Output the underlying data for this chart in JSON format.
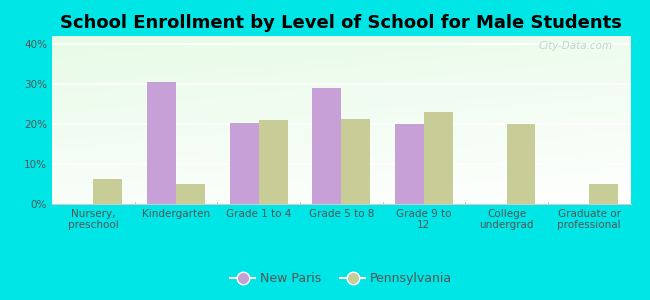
{
  "title": "School Enrollment by Level of School for Male Students",
  "categories": [
    "Nursery,\npreschool",
    "Kindergarten",
    "Grade 1 to 4",
    "Grade 5 to 8",
    "Grade 9 to\n12",
    "College\nundergrad",
    "Graduate or\nprofessional"
  ],
  "new_paris": [
    0,
    30.5,
    20.3,
    29.0,
    20.1,
    0,
    0
  ],
  "pennsylvania": [
    6.2,
    5.0,
    21.0,
    21.3,
    23.0,
    20.0,
    5.0
  ],
  "new_paris_color": "#c8a0d8",
  "pennsylvania_color": "#c8cc96",
  "background_color": "#00e5e5",
  "ylim": [
    0,
    42
  ],
  "yticks": [
    0,
    10,
    20,
    30,
    40
  ],
  "ytick_labels": [
    "0%",
    "10%",
    "20%",
    "30%",
    "40%"
  ],
  "legend_new_paris": "New Paris",
  "legend_pennsylvania": "Pennsylvania",
  "title_fontsize": 13,
  "tick_fontsize": 7.5,
  "legend_fontsize": 9
}
